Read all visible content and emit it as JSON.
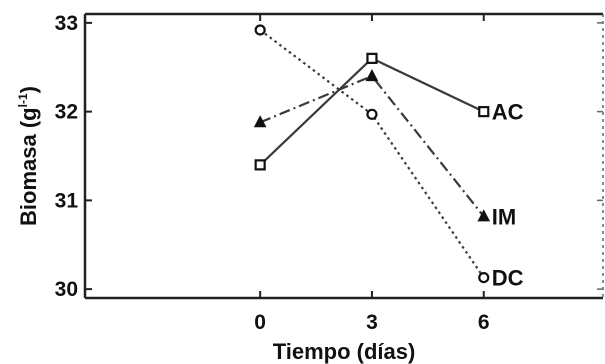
{
  "chart_data": {
    "type": "line",
    "xlabel": "Tiempo (días)",
    "ylabel": {
      "text": "Biomasa (g",
      "superscript": "l-1",
      "close": ")"
    },
    "x": [
      0,
      3,
      6
    ],
    "x_ticks": [
      "0",
      "3",
      "6"
    ],
    "xlim": [
      -4.7,
      9.2
    ],
    "y_ticks": [
      "30",
      "31",
      "32",
      "33"
    ],
    "ylim": [
      29.9,
      33.1
    ],
    "grid": false,
    "series": [
      {
        "name": "AC",
        "values": [
          31.4,
          32.6,
          32.0
        ],
        "marker": "square",
        "line_style": "solid",
        "color": "#3a3a3a"
      },
      {
        "name": "IM",
        "values": [
          31.88,
          32.4,
          30.82
        ],
        "marker": "triangle",
        "line_style": "dash-dot",
        "color": "#3a3a3a"
      },
      {
        "name": "DC",
        "values": [
          32.92,
          31.97,
          30.13
        ],
        "marker": "circle",
        "line_style": "dotted",
        "color": "#3a3a3a"
      }
    ]
  }
}
